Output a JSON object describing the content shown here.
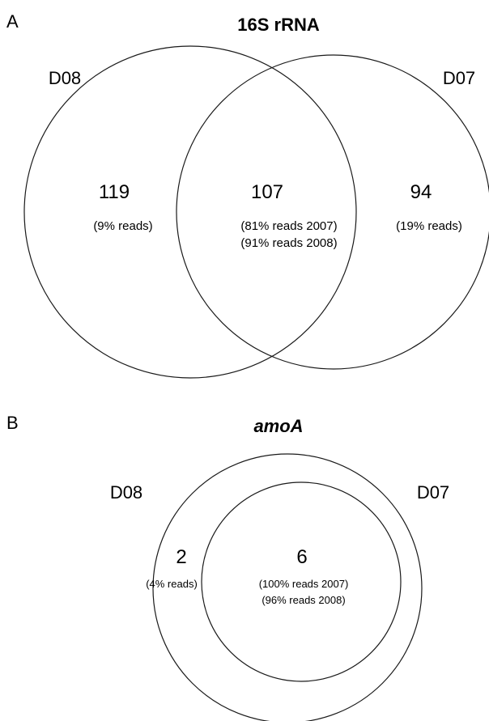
{
  "panel_a": {
    "letter": "A",
    "title": "16S rRNA",
    "left_set": "D08",
    "right_set": "D07",
    "regions": {
      "left_only": {
        "count": "119",
        "note": "(9% reads)"
      },
      "both": {
        "count": "107",
        "note_line1": "(81% reads 2007)",
        "note_line2": "(91% reads 2008)"
      },
      "right_only": {
        "count": "94",
        "note": "(19% reads)"
      }
    }
  },
  "panel_b": {
    "letter": "B",
    "title": "amoA",
    "left_set": "D08",
    "right_set": "D07",
    "regions": {
      "left_only": {
        "count": "2",
        "note": "(4% reads)"
      },
      "both": {
        "count": "6",
        "note_line1": "(100% reads 2007)",
        "note_line2": "(96% reads 2008)"
      }
    }
  },
  "colors": {
    "stroke": "#1a1a1a",
    "background": "#ffffff"
  }
}
